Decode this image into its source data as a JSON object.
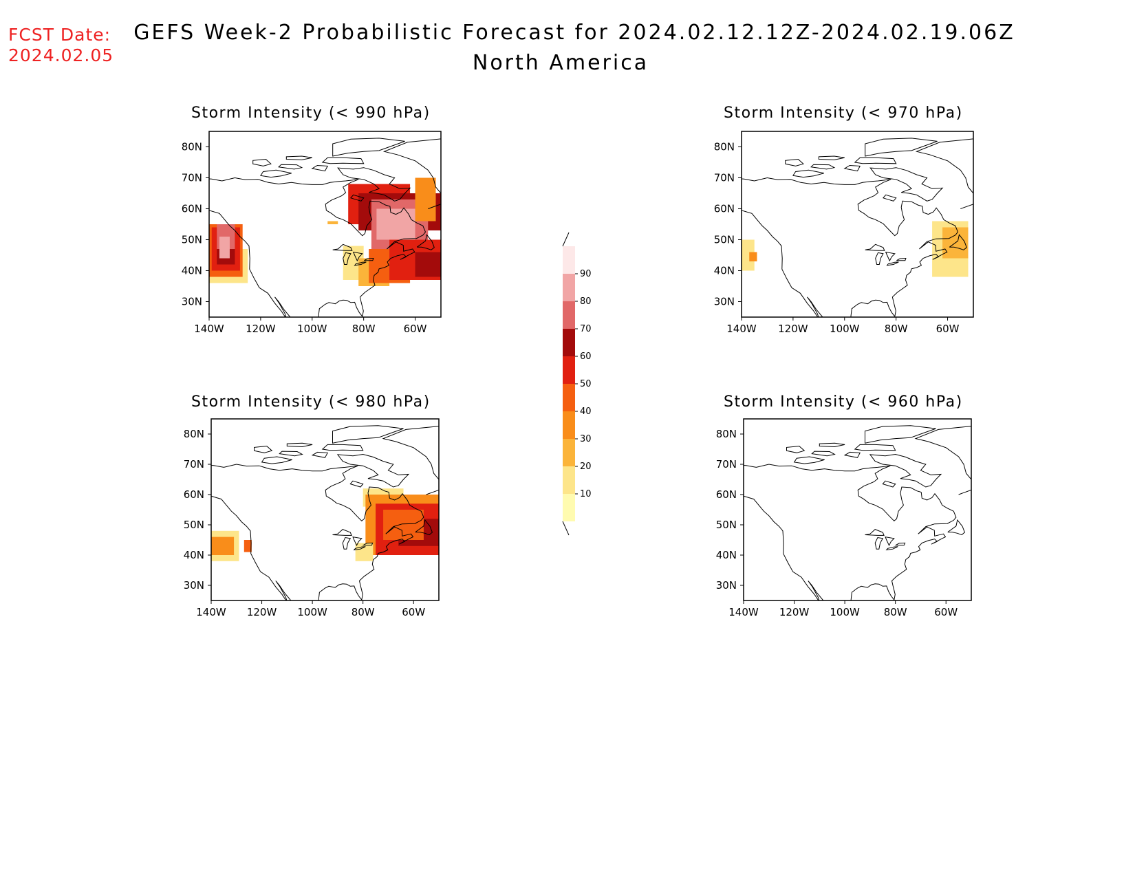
{
  "header": {
    "fcst_label": "FCST Date:",
    "fcst_date": "2024.02.05",
    "title_line1": "GEFS Week-2 Probabilistic Forecast for 2024.02.12.12Z-2024.02.19.06Z",
    "title_line2": "North America"
  },
  "panels": [
    {
      "id": "p990",
      "title": "Storm Intensity (< 990 hPa)"
    },
    {
      "id": "p970",
      "title": "Storm Intensity (< 970 hPa)"
    },
    {
      "id": "p980",
      "title": "Storm Intensity (< 980 hPa)"
    },
    {
      "id": "p960",
      "title": "Storm Intensity (< 960 hPa)"
    }
  ],
  "axes": {
    "lat_ticks": [
      "80N",
      "70N",
      "60N",
      "50N",
      "40N",
      "30N"
    ],
    "lon_ticks": [
      "140W",
      "120W",
      "100W",
      "80W",
      "60W"
    ]
  },
  "colorbar": {
    "levels": [
      "10",
      "20",
      "30",
      "40",
      "50",
      "60",
      "70",
      "80",
      "90"
    ],
    "colors": [
      "#fffbb0",
      "#fde58a",
      "#fbb43a",
      "#f98d1a",
      "#f55f10",
      "#e12010",
      "#a30b0b",
      "#e16868",
      "#f1a5a5",
      "#fde8e8"
    ]
  },
  "chart_data": {
    "type": "heatmap",
    "units": "probability (%)",
    "regions": {
      "p990": [
        {
          "region": "Pacific NW offshore (40-55N,135-125W)",
          "max_prob": 80
        },
        {
          "region": "Eastern Canada / Labrador (45-65N,80-55W)",
          "max_prob": 80
        },
        {
          "region": "US East Coast / Great Lakes (35-50N,90-70W)",
          "max_prob": 50
        }
      ],
      "p980": [
        {
          "region": "Pacific NW offshore (40-50N,140-125W)",
          "max_prob": 50
        },
        {
          "region": "Eastern Canada / NW Atlantic (40-60N,80-50W)",
          "max_prob": 60
        }
      ],
      "p970": [
        {
          "region": "Pacific offshore (40-50N,140-135W)",
          "max_prob": 40
        },
        {
          "region": "NW Atlantic / Newfoundland (40-55N,65-50W)",
          "max_prob": 20
        }
      ],
      "p960": []
    }
  }
}
